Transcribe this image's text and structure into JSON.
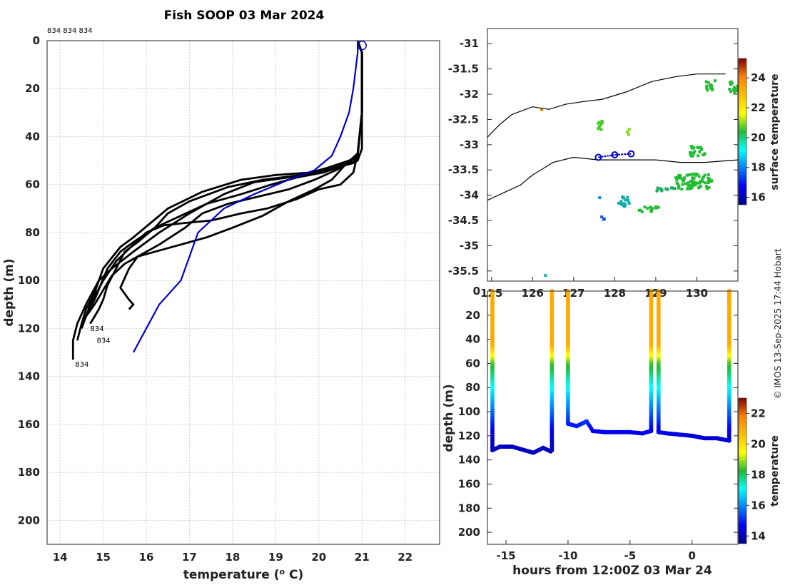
{
  "title": "Fish SOOP 03 Mar 2024",
  "credit": "© IMOS 13-Sep-2025 17:44 Hobart",
  "chart_data": [
    {
      "type": "line",
      "name": "profiles",
      "xlabel": "temperature (° C)",
      "xlabel_main": "temperature (",
      "xlabel_sup": "o",
      "xlabel_end": " C)",
      "ylabel": "depth (m)",
      "xlim": [
        13.7,
        22.8
      ],
      "ylim": [
        0,
        210
      ],
      "y_reversed": true,
      "xticks": [
        14,
        15,
        16,
        17,
        18,
        19,
        20,
        21,
        22
      ],
      "yticks": [
        0,
        20,
        40,
        60,
        80,
        100,
        120,
        140,
        160,
        180,
        200
      ],
      "grid": true,
      "top_label": "834 834 834",
      "series": [
        {
          "color": "#000000",
          "x": [
            20.9,
            21.0,
            21.0,
            21.0,
            20.9,
            20.5,
            20.2,
            19.8,
            19.0,
            18.2,
            17.3,
            16.5,
            16.1,
            15.7,
            15.4,
            15.0,
            14.8,
            14.6,
            14.5
          ],
          "y": [
            0,
            5,
            20,
            45,
            50,
            52,
            54,
            55,
            56,
            58,
            63,
            70,
            76,
            82,
            86,
            95,
            105,
            112,
            118
          ]
        },
        {
          "color": "#000000",
          "x": [
            20.9,
            21.0,
            21.0,
            20.9,
            20.6,
            20.1,
            19.5,
            18.9,
            18.2,
            17.4,
            16.8,
            16.2,
            15.8,
            15.5,
            15.3,
            15.1,
            15.0,
            14.9,
            14.8,
            14.7
          ],
          "y": [
            0,
            5,
            30,
            48,
            52,
            55,
            57,
            60,
            64,
            68,
            73,
            78,
            84,
            88,
            95,
            102,
            108,
            112,
            115,
            118
          ]
        },
        {
          "color": "#000000",
          "x": [
            20.9,
            21.0,
            21.0,
            20.9,
            20.7,
            20.2,
            19.6,
            18.7,
            17.9,
            17.0,
            16.5,
            16.2,
            15.7,
            15.4,
            15.1,
            14.8,
            14.6,
            14.5,
            14.4
          ],
          "y": [
            0,
            5,
            30,
            48,
            50,
            53,
            56,
            58,
            61,
            67,
            72,
            78,
            84,
            88,
            95,
            108,
            115,
            118,
            125
          ]
        },
        {
          "color": "#000000",
          "x": [
            20.9,
            21.0,
            21.0,
            20.9,
            20.8,
            20.4,
            19.9,
            19.3,
            18.5,
            17.8,
            17.0,
            16.3,
            15.7,
            15.2,
            14.9,
            14.6,
            14.4,
            14.3,
            14.3
          ],
          "y": [
            0,
            5,
            30,
            47,
            51,
            53,
            55,
            57,
            59,
            64,
            72,
            80,
            88,
            95,
            100,
            110,
            118,
            125,
            133
          ]
        },
        {
          "color": "#000000",
          "x": [
            20.9,
            21.0,
            21.0,
            20.9,
            20.7,
            20.4,
            19.9,
            19.3,
            18.6,
            17.9,
            17.3,
            16.9,
            16.3,
            15.8,
            15.6,
            15.4,
            15.6,
            15.7,
            15.6
          ],
          "y": [
            0,
            5,
            30,
            47,
            51,
            54,
            58,
            62,
            65,
            68,
            72,
            78,
            85,
            90,
            95,
            103,
            108,
            110,
            112
          ]
        },
        {
          "color": "#000000",
          "x": [
            20.9,
            21.0,
            21.0,
            20.9,
            20.6,
            20.3,
            19.9,
            19.3,
            18.7,
            18.0,
            17.4,
            16.8,
            16.2,
            15.8,
            15.5,
            15.2,
            15.0,
            14.8,
            14.6
          ],
          "y": [
            0,
            5,
            30,
            47,
            52,
            58,
            62,
            67,
            73,
            78,
            82,
            85,
            88,
            90,
            93,
            98,
            104,
            110,
            115
          ]
        },
        {
          "color": "#000000",
          "x": [
            20.9,
            21.0,
            21.0,
            20.9,
            20.8,
            20.5,
            20.0,
            19.5,
            18.8,
            18.2,
            17.5,
            16.9,
            16.4,
            16.0,
            15.7,
            15.3,
            15.0,
            14.7,
            14.5
          ],
          "y": [
            0,
            5,
            30,
            47,
            55,
            60,
            62,
            66,
            70,
            72,
            75,
            76,
            77,
            80,
            85,
            92,
            100,
            110,
            120
          ]
        },
        {
          "color": "#0000cc",
          "x": [
            20.9,
            20.9,
            20.8,
            20.7,
            20.5,
            20.3,
            19.9,
            19.3,
            18.5,
            17.8,
            17.2,
            17.0,
            16.8,
            16.3,
            16.0,
            15.7
          ],
          "y": [
            0,
            5,
            20,
            30,
            40,
            48,
            54,
            58,
            64,
            70,
            80,
            90,
            100,
            110,
            120,
            130
          ]
        }
      ],
      "bottom_labels": [
        {
          "text": "834",
          "x": 14.7,
          "y": 121
        },
        {
          "text": "834",
          "x": 14.85,
          "y": 126
        },
        {
          "text": "834",
          "x": 14.35,
          "y": 136
        }
      ]
    },
    {
      "type": "heatmap",
      "name": "surface-map",
      "xticks": [
        125,
        126,
        127,
        128,
        129,
        130
      ],
      "xtick_labels": [
        "125",
        "126",
        "127",
        "128",
        "129",
        "130"
      ],
      "xlim": [
        124.9,
        131.0
      ],
      "ylim": [
        -35.7,
        -30.7
      ],
      "yticks": [
        -31,
        -31.5,
        -32,
        -32.5,
        -33,
        -33.5,
        -34,
        -34.5,
        -35,
        -35.5
      ],
      "ytick_labels": [
        "-31",
        "-31.5",
        "-32",
        "-32.5",
        "-33",
        "-33.5",
        "-34",
        "-34.5",
        "-35",
        "-35.5"
      ],
      "colorbar_label": "surface temperature",
      "colorbar_range": [
        15.5,
        25.3
      ],
      "colorbar_ticks": [
        16,
        18,
        20,
        22,
        24
      ],
      "coast_north": [
        [
          124.9,
          -32.85
        ],
        [
          125.2,
          -32.6
        ],
        [
          125.5,
          -32.4
        ],
        [
          126.0,
          -32.25
        ],
        [
          126.4,
          -32.3
        ],
        [
          126.8,
          -32.2
        ],
        [
          127.2,
          -32.15
        ],
        [
          127.7,
          -32.1
        ],
        [
          128.3,
          -31.95
        ],
        [
          128.9,
          -31.75
        ],
        [
          129.5,
          -31.65
        ],
        [
          130.0,
          -31.6
        ],
        [
          130.7,
          -31.6
        ]
      ],
      "coast_south": [
        [
          124.9,
          -34.1
        ],
        [
          125.3,
          -33.95
        ],
        [
          125.7,
          -33.8
        ],
        [
          126.0,
          -33.6
        ],
        [
          126.5,
          -33.35
        ],
        [
          127.0,
          -33.25
        ],
        [
          127.6,
          -33.3
        ],
        [
          128.3,
          -33.3
        ],
        [
          129.0,
          -33.3
        ],
        [
          129.6,
          -33.35
        ],
        [
          130.2,
          -33.35
        ],
        [
          131.0,
          -33.3
        ]
      ],
      "track_points": [
        [
          127.6,
          -33.25
        ],
        [
          128.0,
          -33.2
        ],
        [
          128.4,
          -33.18
        ]
      ],
      "patches": [
        {
          "lon": 130.3,
          "lat": -31.8,
          "w": 0.25,
          "h": 0.2,
          "color": "#22bb33"
        },
        {
          "lon": 130.9,
          "lat": -31.85,
          "w": 0.3,
          "h": 0.25,
          "color": "#22bb33"
        },
        {
          "lon": 127.6,
          "lat": -32.6,
          "w": 0.15,
          "h": 0.2,
          "color": "#44cc22"
        },
        {
          "lon": 128.3,
          "lat": -32.7,
          "w": 0.1,
          "h": 0.15,
          "color": "#88dd22"
        },
        {
          "lon": 126.2,
          "lat": -32.3,
          "w": 0.05,
          "h": 0.05,
          "color": "#dd8800"
        },
        {
          "lon": 130.0,
          "lat": -33.1,
          "w": 0.4,
          "h": 0.2,
          "color": "#22bb33"
        },
        {
          "lon": 129.9,
          "lat": -33.7,
          "w": 0.9,
          "h": 0.3,
          "color": "#22bb33"
        },
        {
          "lon": 129.2,
          "lat": -33.85,
          "w": 0.5,
          "h": 0.1,
          "color": "#22aa66"
        },
        {
          "lon": 128.2,
          "lat": -34.1,
          "w": 0.3,
          "h": 0.2,
          "color": "#11aaaa"
        },
        {
          "lon": 127.6,
          "lat": -34.0,
          "w": 0.1,
          "h": 0.05,
          "color": "#1188dd"
        },
        {
          "lon": 127.7,
          "lat": -34.4,
          "w": 0.1,
          "h": 0.1,
          "color": "#1155cc"
        },
        {
          "lon": 128.8,
          "lat": -34.25,
          "w": 0.5,
          "h": 0.1,
          "color": "#22bb33"
        },
        {
          "lon": 126.3,
          "lat": -35.55,
          "w": 0.04,
          "h": 0.04,
          "color": "#11aaaa"
        }
      ]
    },
    {
      "type": "scatter",
      "name": "depth-time",
      "xlabel": "hours from 12:00Z 03 Mar 24",
      "ylabel": "depth (m)",
      "xlim": [
        -16.5,
        3.7
      ],
      "ylim": [
        0,
        210
      ],
      "y_reversed": true,
      "xticks": [
        -15,
        -10,
        -5,
        0
      ],
      "yticks": [
        0,
        20,
        40,
        60,
        80,
        100,
        120,
        140,
        160,
        180,
        200
      ],
      "ytick_labels": [
        "0",
        "20",
        "40",
        "60",
        "80",
        "100",
        "120",
        "140",
        "160",
        "180",
        "200"
      ],
      "colorbar_label": "temperature",
      "colorbar_range": [
        13.5,
        23.0
      ],
      "colorbar_ticks": [
        14,
        16,
        18,
        20,
        22
      ],
      "segments": [
        {
          "kind": "cast",
          "x": -16.1,
          "depth": 130
        },
        {
          "kind": "bottom",
          "x": [
            -16.1,
            -15.5,
            -14.5,
            -13.5,
            -12.8,
            -12.0,
            -11.4
          ],
          "depth": [
            132,
            129,
            129,
            132,
            134,
            130,
            133
          ]
        },
        {
          "kind": "cast",
          "x": -11.3,
          "depth": 133
        },
        {
          "kind": "cast",
          "x": -10.0,
          "depth": 110
        },
        {
          "kind": "bottom",
          "x": [
            -10.0,
            -9.3,
            -8.5,
            -8.0,
            -7.0,
            -6.0,
            -5.0,
            -4.0,
            -3.3
          ],
          "depth": [
            110,
            112,
            108,
            116,
            117,
            117,
            117,
            118,
            116
          ]
        },
        {
          "kind": "cast",
          "x": -3.3,
          "depth": 117
        },
        {
          "kind": "cast",
          "x": -2.7,
          "depth": 117
        },
        {
          "kind": "bottom",
          "x": [
            -2.7,
            -2.0,
            -1.0,
            0.0,
            1.0,
            2.0,
            3.0
          ],
          "depth": [
            117,
            118,
            119,
            120,
            122,
            122,
            124
          ]
        },
        {
          "kind": "cast",
          "x": 3.0,
          "depth": 125
        }
      ]
    }
  ]
}
